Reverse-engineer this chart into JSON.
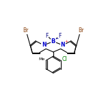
{
  "bg_color": "#ffffff",
  "line_color": "#000000",
  "atom_colors": {
    "Br": "#8B4513",
    "N": "#0000CD",
    "B": "#0000CD",
    "F": "#000080",
    "Cl": "#008000",
    "C": "#000000",
    "plus": "#FF0000",
    "minus": "#0000CD"
  },
  "figsize": [
    1.52,
    1.52
  ],
  "dpi": 100,
  "lw": 0.8,
  "fs": 5.5,
  "fs_small": 4.5
}
